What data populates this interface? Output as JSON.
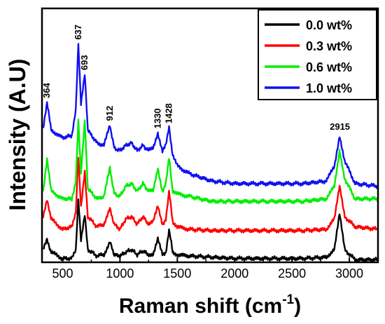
{
  "chart_data": {
    "type": "line",
    "xlabel": "Raman shift (cm",
    "xlabel_sup": "-1",
    "xlabel_close": ")",
    "ylabel": "Intensity (A.U)",
    "xlim": [
      320,
      3250
    ],
    "ylim": [
      0,
      100
    ],
    "xticks": [
      "500",
      "1000",
      "1500",
      "2000",
      "2500",
      "3000"
    ],
    "legend_position": "top-right",
    "grid": false,
    "peak_labels": [
      "364",
      "637",
      "693",
      "912",
      "1330",
      "1428",
      "2915"
    ],
    "series": [
      {
        "name": "0.0 wt%",
        "color": "#000000",
        "points": [
          [
            330,
            5
          ],
          [
            364,
            9
          ],
          [
            400,
            4
          ],
          [
            500,
            1.5
          ],
          [
            580,
            1.5
          ],
          [
            615,
            5
          ],
          [
            637,
            25
          ],
          [
            660,
            9
          ],
          [
            693,
            19
          ],
          [
            720,
            5
          ],
          [
            800,
            2.5
          ],
          [
            860,
            3
          ],
          [
            912,
            8
          ],
          [
            950,
            3
          ],
          [
            1000,
            2.5
          ],
          [
            1050,
            4
          ],
          [
            1100,
            5
          ],
          [
            1150,
            3
          ],
          [
            1200,
            4.5
          ],
          [
            1250,
            3
          ],
          [
            1290,
            3
          ],
          [
            1330,
            9
          ],
          [
            1370,
            3
          ],
          [
            1400,
            4
          ],
          [
            1428,
            13
          ],
          [
            1460,
            4
          ],
          [
            1500,
            3
          ],
          [
            1600,
            2.5
          ],
          [
            1800,
            2
          ],
          [
            2000,
            1.5
          ],
          [
            2300,
            1.5
          ],
          [
            2600,
            1.5
          ],
          [
            2800,
            2
          ],
          [
            2870,
            5
          ],
          [
            2915,
            19
          ],
          [
            2960,
            5
          ],
          [
            3050,
            1
          ],
          [
            3250,
            1
          ]
        ]
      },
      {
        "name": "0.3 wt%",
        "color": "#ff0000",
        "points": [
          [
            330,
            18
          ],
          [
            364,
            25
          ],
          [
            400,
            17
          ],
          [
            500,
            13
          ],
          [
            580,
            14
          ],
          [
            615,
            20
          ],
          [
            637,
            42
          ],
          [
            660,
            22
          ],
          [
            693,
            36
          ],
          [
            720,
            18
          ],
          [
            800,
            14
          ],
          [
            860,
            15
          ],
          [
            912,
            21
          ],
          [
            950,
            15
          ],
          [
            1000,
            13
          ],
          [
            1050,
            17
          ],
          [
            1100,
            18
          ],
          [
            1150,
            15
          ],
          [
            1200,
            18
          ],
          [
            1250,
            15
          ],
          [
            1290,
            16
          ],
          [
            1330,
            22
          ],
          [
            1370,
            15
          ],
          [
            1400,
            17
          ],
          [
            1428,
            28
          ],
          [
            1460,
            16
          ],
          [
            1500,
            14
          ],
          [
            1600,
            13
          ],
          [
            1800,
            12.5
          ],
          [
            2000,
            12.5
          ],
          [
            2300,
            12.5
          ],
          [
            2600,
            12.5
          ],
          [
            2800,
            13
          ],
          [
            2870,
            17
          ],
          [
            2915,
            30
          ],
          [
            2960,
            18
          ],
          [
            3050,
            14
          ],
          [
            3250,
            13
          ]
        ]
      },
      {
        "name": "0.6 wt%",
        "color": "#00ee00",
        "points": [
          [
            330,
            28
          ],
          [
            364,
            41
          ],
          [
            400,
            28
          ],
          [
            500,
            25
          ],
          [
            580,
            25
          ],
          [
            615,
            32
          ],
          [
            637,
            56
          ],
          [
            660,
            35
          ],
          [
            693,
            56
          ],
          [
            720,
            29
          ],
          [
            800,
            25
          ],
          [
            860,
            26
          ],
          [
            912,
            37
          ],
          [
            950,
            27
          ],
          [
            1000,
            26
          ],
          [
            1050,
            30
          ],
          [
            1100,
            31
          ],
          [
            1150,
            28
          ],
          [
            1200,
            31
          ],
          [
            1250,
            28
          ],
          [
            1290,
            28
          ],
          [
            1330,
            37
          ],
          [
            1370,
            28
          ],
          [
            1400,
            31
          ],
          [
            1428,
            41
          ],
          [
            1460,
            28
          ],
          [
            1500,
            27
          ],
          [
            1600,
            26
          ],
          [
            1800,
            24
          ],
          [
            2000,
            24
          ],
          [
            2300,
            24
          ],
          [
            2600,
            24
          ],
          [
            2800,
            25
          ],
          [
            2870,
            30
          ],
          [
            2915,
            44
          ],
          [
            2960,
            33
          ],
          [
            3050,
            25
          ],
          [
            3250,
            25
          ]
        ]
      },
      {
        "name": "1.0 wt%",
        "color": "#1010ee",
        "points": [
          [
            330,
            53
          ],
          [
            364,
            63
          ],
          [
            400,
            52
          ],
          [
            500,
            49
          ],
          [
            580,
            50
          ],
          [
            615,
            60
          ],
          [
            637,
            86
          ],
          [
            660,
            62
          ],
          [
            693,
            74
          ],
          [
            720,
            52
          ],
          [
            800,
            47
          ],
          [
            860,
            46
          ],
          [
            912,
            54
          ],
          [
            950,
            45
          ],
          [
            1000,
            44
          ],
          [
            1050,
            46
          ],
          [
            1100,
            47
          ],
          [
            1150,
            44
          ],
          [
            1200,
            46
          ],
          [
            1250,
            44
          ],
          [
            1290,
            45
          ],
          [
            1330,
            51
          ],
          [
            1370,
            44
          ],
          [
            1400,
            46
          ],
          [
            1428,
            53
          ],
          [
            1460,
            42
          ],
          [
            1500,
            38
          ],
          [
            1600,
            35
          ],
          [
            1800,
            32
          ],
          [
            2000,
            31
          ],
          [
            2300,
            31
          ],
          [
            2600,
            31
          ],
          [
            2800,
            32
          ],
          [
            2870,
            38
          ],
          [
            2915,
            50
          ],
          [
            2960,
            40
          ],
          [
            3050,
            31
          ],
          [
            3250,
            30
          ]
        ]
      }
    ]
  }
}
